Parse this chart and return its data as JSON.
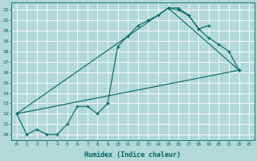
{
  "xlabel": "Humidex (Indice chaleur)",
  "bg_color": "#b2d8d8",
  "grid_color": "#a0c8c8",
  "line_color": "#006666",
  "xlim": [
    -0.5,
    23.5
  ],
  "ylim": [
    9.5,
    22.7
  ],
  "curve1_x": [
    0,
    1,
    2,
    3,
    4,
    5,
    6,
    7,
    8,
    9,
    10,
    11,
    12,
    13,
    14,
    15,
    16,
    17,
    18,
    19
  ],
  "curve1_y": [
    12.0,
    10.0,
    10.5,
    10.0,
    10.0,
    11.0,
    12.7,
    12.7,
    12.0,
    13.0,
    18.5,
    19.5,
    20.5,
    21.0,
    21.5,
    22.2,
    22.2,
    21.5,
    20.2,
    20.5
  ],
  "curve2_x": [
    15,
    16,
    17,
    18,
    19,
    20,
    21,
    22
  ],
  "curve2_y": [
    22.2,
    22.0,
    21.5,
    20.2,
    19.3,
    18.7,
    18.0,
    16.2
  ],
  "line3_x": [
    0,
    15,
    22
  ],
  "line3_y": [
    12.0,
    22.2,
    16.2
  ],
  "line4_x": [
    0,
    22
  ],
  "line4_y": [
    12.0,
    16.2
  ],
  "yticks": [
    10,
    11,
    12,
    13,
    14,
    15,
    16,
    17,
    18,
    19,
    20,
    21,
    22
  ],
  "xticks": [
    0,
    1,
    2,
    3,
    4,
    5,
    6,
    7,
    8,
    9,
    10,
    11,
    12,
    13,
    14,
    15,
    16,
    17,
    18,
    19,
    20,
    21,
    22,
    23
  ]
}
